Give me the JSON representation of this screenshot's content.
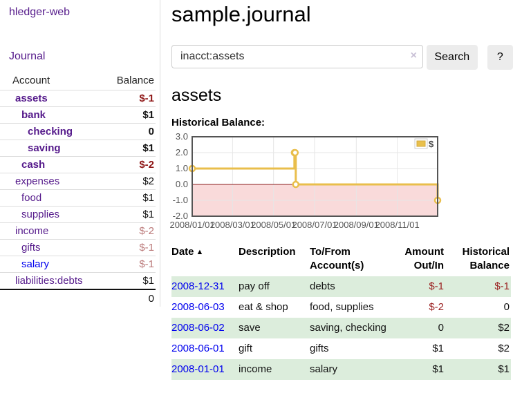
{
  "app": {
    "brand": "hledger-web"
  },
  "sidebar": {
    "journal_link": "Journal",
    "accounts": {
      "header_account": "Account",
      "header_balance": "Balance",
      "rows": [
        {
          "account": "assets",
          "balance": "$-1",
          "depth": 1,
          "bold": true,
          "negative": "strong"
        },
        {
          "account": "bank",
          "balance": "$1",
          "depth": 2,
          "bold": true
        },
        {
          "account": "checking",
          "balance": "0",
          "depth": 3,
          "bold": true
        },
        {
          "account": "saving",
          "balance": "$1",
          "depth": 3,
          "bold": true
        },
        {
          "account": "cash",
          "balance": "$-2",
          "depth": 2,
          "bold": true,
          "negative": "strong"
        },
        {
          "account": "expenses",
          "balance": "$2",
          "depth": 1
        },
        {
          "account": "food",
          "balance": "$1",
          "depth": 2
        },
        {
          "account": "supplies",
          "balance": "$1",
          "depth": 2
        },
        {
          "account": "income",
          "balance": "$-2",
          "depth": 1,
          "negative": "soft"
        },
        {
          "account": "gifts",
          "balance": "$-1",
          "depth": 2,
          "negative": "soft"
        },
        {
          "account": "salary",
          "balance": "$-1",
          "depth": 2,
          "negative": "soft",
          "link_color": "blue"
        },
        {
          "account": "liabilities:debts",
          "balance": "$1",
          "depth": 1
        }
      ],
      "total": "0"
    }
  },
  "main": {
    "title": "sample.journal",
    "search": {
      "value": "inacct:assets",
      "clear_icon": "×",
      "search_button": "Search",
      "help_button": "?"
    },
    "account_heading": "assets",
    "chart_title": "Historical Balance:"
  },
  "chart_data": {
    "type": "line",
    "interpolation": "step",
    "title": "Historical Balance",
    "legend": {
      "label": "$",
      "position": "top-right",
      "swatch_color": "#E9C04B"
    },
    "xlim": [
      "2008-01-01",
      "2008-12-31"
    ],
    "ylim": [
      -2,
      3
    ],
    "grid": true,
    "x_ticks": [
      {
        "pos": "2008-01-01",
        "label": "2008/01/01"
      },
      {
        "pos": "2008-03-01",
        "label": "2008/03/01"
      },
      {
        "pos": "2008-05-01",
        "label": "2008/05/01"
      },
      {
        "pos": "2008-07-01",
        "label": "2008/07/01"
      },
      {
        "pos": "2008-09-01",
        "label": "2008/09/01"
      },
      {
        "pos": "2008-11-01",
        "label": "2008/11/01"
      }
    ],
    "y_ticks": [
      {
        "value": 3,
        "label": "3.0"
      },
      {
        "value": 2,
        "label": "2.0"
      },
      {
        "value": 1,
        "label": "1.0"
      },
      {
        "value": 0,
        "label": "0.0"
      },
      {
        "value": -1,
        "label": "-1.0"
      },
      {
        "value": -2,
        "label": "-2.0"
      }
    ],
    "series": [
      {
        "name": "$",
        "color": "#E9BE4B",
        "points": [
          [
            "2008-01-01",
            1
          ],
          [
            "2008-06-01",
            2
          ],
          [
            "2008-06-02",
            2
          ],
          [
            "2008-06-03",
            0
          ],
          [
            "2008-12-31",
            -1
          ]
        ]
      }
    ],
    "negative_region_fill": "#F9DADA",
    "zero_line_color": "#8B1A1A",
    "plot_border_color": "#545454",
    "grid_color": "#E6E6E6"
  },
  "register_table": {
    "headers": {
      "date": "Date",
      "sort_icon": "▲",
      "description": "Description",
      "accounts": "To/From Account(s)",
      "amount": "Amount Out/In",
      "balance": "Historical Balance"
    },
    "rows": [
      {
        "date": "2008-12-31",
        "description": "pay off",
        "accounts": "debts",
        "amount": "$-1",
        "balance": "$-1",
        "amount_negative": true,
        "balance_negative": true
      },
      {
        "date": "2008-06-03",
        "description": "eat & shop",
        "accounts": "food, supplies",
        "amount": "$-2",
        "balance": "0",
        "amount_negative": true,
        "balance_negative": false
      },
      {
        "date": "2008-06-02",
        "description": "save",
        "accounts": "saving, checking",
        "amount": "0",
        "balance": "$2",
        "amount_negative": false,
        "balance_negative": false
      },
      {
        "date": "2008-06-01",
        "description": "gift",
        "accounts": "gifts",
        "amount": "$1",
        "balance": "$2",
        "amount_negative": false,
        "balance_negative": false
      },
      {
        "date": "2008-01-01",
        "description": "income",
        "accounts": "salary",
        "amount": "$1",
        "balance": "$1",
        "amount_negative": false,
        "balance_negative": false
      }
    ]
  },
  "colors": {
    "link_purple": "#551A8B",
    "link_blue": "#0000EE",
    "negative_strong": "#8E1616",
    "negative_soft": "#BA7878",
    "negative_table": "#9A1F1F",
    "row_stripe_green": "#DCEDDC",
    "chart_line_yellow": "#E9BE4B",
    "chart_negative_pink": "#F9DADA",
    "chart_zero_line": "#8B1A1A",
    "sidebar_divider": "#DDDDDD"
  }
}
